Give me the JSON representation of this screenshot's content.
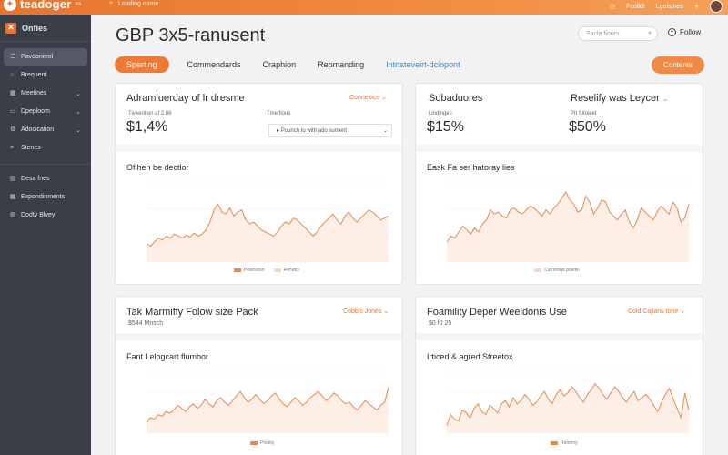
{
  "topbar": {
    "brand": "teadoger",
    "brand_suffix": "es",
    "location": "Loading name",
    "links": [
      "Fcolldt",
      "Lgoistnes"
    ]
  },
  "sidebar": {
    "header": "Onfies",
    "items": [
      {
        "label": "Pavoonitrol",
        "icon": "list-icon",
        "active": true
      },
      {
        "label": "Brequent",
        "icon": "circle-icon"
      },
      {
        "label": "Meetines",
        "icon": "grid-icon",
        "chev": true
      },
      {
        "label": "Dpeploom",
        "icon": "folder-icon",
        "chev": true
      },
      {
        "label": "Adocication",
        "icon": "gear-icon",
        "chev": true
      },
      {
        "label": "Stenes",
        "icon": "list-icon"
      }
    ],
    "items2": [
      {
        "label": "Desa fnes",
        "icon": "doc-icon"
      },
      {
        "label": "Expondinments",
        "icon": "grid-icon"
      },
      {
        "label": "Dodty Blvey",
        "icon": "chart-icon"
      }
    ]
  },
  "header": {
    "title": "GBP 3x5-ranusent",
    "search_placeholder": "Sacle fiours",
    "follow": "Follow"
  },
  "tabs": [
    {
      "label": "Sperting",
      "active": true
    },
    {
      "label": "Commendards"
    },
    {
      "label": "Craphion"
    },
    {
      "label": "Repmanding"
    },
    {
      "label": "Intrtsteveirt-dciopont",
      "link": true
    }
  ],
  "contents_button": "Contents",
  "cards": {
    "c1": {
      "title": "Adramluerday of lr dresme",
      "dropdown": "Connexice",
      "sub1": "Tiveention af 2.08",
      "value": "$1,4%",
      "sub2": "Tme fious",
      "select": "Pounch to with ado sument",
      "chart_title": "Oflhen be dectlor",
      "legend": [
        "Pownrdon",
        "Renatry"
      ]
    },
    "c2": {
      "title": "Sobaduores",
      "title2": "Reselify was Leycer",
      "sub1": "Lindinges",
      "sub2": "Pit Sitoieet",
      "value1": "$15%",
      "value2": "$50%",
      "chart_title": "Eask Fa ser hatoray lies",
      "legend": [
        "Currorond poedin"
      ]
    },
    "c3": {
      "title": "Tak Marmiffy Folow size Pack",
      "dropdown": "Cobbls Jones",
      "sub1": "$544 Mnsch",
      "chart_title": "Fant Lelogcart flumbor",
      "legend": [
        "Prestiy"
      ]
    },
    "c4": {
      "title": "Foamility Deper Weeldonis Use",
      "dropdown": "Cold Cajlans tone",
      "sub1": "$0 f0 25",
      "chart_title": "Irticed & agred Streetox",
      "legend": [
        "Retoriny"
      ]
    }
  },
  "colors": {
    "accent": "#ef7a37",
    "sidebar": "#3b3d48",
    "line": "#e58a52"
  },
  "chart_series": {
    "c1": [
      38,
      36,
      40,
      44,
      42,
      46,
      44,
      48,
      46,
      44,
      47,
      45,
      49,
      46,
      48,
      52,
      60,
      72,
      78,
      70,
      68,
      74,
      66,
      70,
      72,
      62,
      58,
      60,
      56,
      52,
      50,
      48,
      46,
      50,
      56,
      60,
      58,
      64,
      62,
      58,
      54,
      50,
      46,
      50,
      56,
      60,
      64,
      68,
      62,
      58,
      66,
      70,
      64,
      60,
      64,
      68,
      72,
      70,
      66,
      62,
      64,
      66
    ],
    "c2": [
      40,
      46,
      44,
      50,
      56,
      52,
      48,
      54,
      50,
      58,
      62,
      72,
      68,
      70,
      66,
      64,
      72,
      74,
      70,
      68,
      72,
      76,
      74,
      70,
      66,
      72,
      68,
      74,
      78,
      84,
      90,
      82,
      78,
      70,
      72,
      86,
      80,
      68,
      74,
      82,
      80,
      70,
      66,
      62,
      68,
      72,
      60,
      54,
      62,
      74,
      70,
      66,
      62,
      70,
      76,
      72,
      68,
      80,
      74,
      60,
      64,
      78
    ],
    "c3": [
      34,
      40,
      38,
      44,
      42,
      48,
      46,
      50,
      56,
      52,
      48,
      54,
      58,
      52,
      56,
      64,
      58,
      54,
      62,
      66,
      60,
      56,
      62,
      68,
      74,
      66,
      60,
      64,
      70,
      64,
      58,
      62,
      68,
      72,
      64,
      58,
      54,
      60,
      66,
      62,
      56,
      60,
      66,
      70,
      74,
      68,
      62,
      66,
      72,
      68,
      62,
      58,
      60,
      54,
      50,
      56,
      62,
      58,
      54,
      50,
      56,
      60,
      80
    ],
    "c4": [
      30,
      44,
      38,
      36,
      50,
      46,
      40,
      52,
      58,
      48,
      44,
      56,
      52,
      46,
      58,
      62,
      54,
      66,
      58,
      62,
      70,
      64,
      56,
      60,
      68,
      74,
      64,
      58,
      70,
      76,
      68,
      72,
      80,
      74,
      66,
      60,
      70,
      76,
      84,
      78,
      70,
      64,
      72,
      80,
      74,
      66,
      60,
      68,
      74,
      62,
      66,
      70,
      64,
      56,
      48,
      60,
      70,
      78,
      64,
      52,
      40,
      72,
      50
    ]
  }
}
